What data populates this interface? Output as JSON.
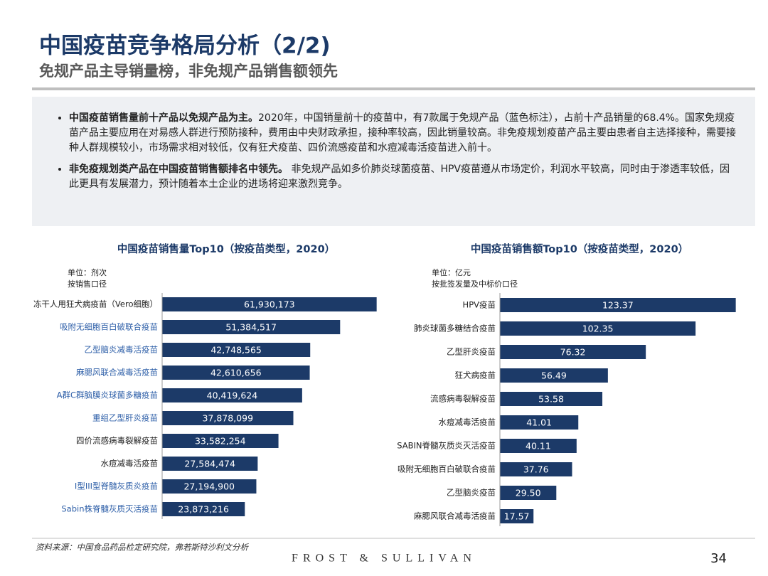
{
  "header": {
    "title": "中国疫苗竞争格局分析（2/2)",
    "subtitle": "免规产品主导销量榜，非免规产品销售额领先"
  },
  "bullets": [
    {
      "bold": "中国疫苗销售量前十产品以免规产品为主。",
      "text": "2020年，中国销量前十的疫苗中，有7款属于免规产品（蓝色标注），占前十产品销量的68.4%。国家免规疫苗产品主要应用在对易感人群进行预防接种，费用由中央财政承担，接种率较高，因此销量较高。非免疫规划疫苗产品主要由患者自主选择接种，需要接种人群规模较小，市场需求相对较低，仅有狂犬疫苗、四价流感疫苗和水痘减毒活疫苗进入前十。"
    },
    {
      "bold": "非免疫规划类产品在中国疫苗销售额排名中领先。",
      "text": " 非免规产品如多价肺炎球菌疫苗、HPV疫苗遵从市场定价，利润水平较高，同时由于渗透率较低，因此更具有发展潜力，预计随着本土企业的进场将迎来激烈竞争。"
    }
  ],
  "chart_data": [
    {
      "type": "hbar",
      "title": "中国疫苗销售量Top10（按疫苗类型，2020）",
      "unit": "单位：剂次",
      "note": "按销售口径",
      "categories": [
        "冻干人用狂犬病疫苗（Vero细胞）",
        "吸附无细胞百白破联合疫苗",
        "乙型脑炎减毒活疫苗",
        "麻腮风联合减毒活疫苗",
        "A群C群脑膜炎球菌多糖疫苗",
        "重组乙型肝炎疫苗",
        "四价流感病毒裂解疫苗",
        "水痘减毒活疫苗",
        "I型III型脊髓灰质炎疫苗",
        "Sabin株脊髓灰质灭活疫苗"
      ],
      "category_colors": [
        "#222222",
        "#2e5fa8",
        "#2e5fa8",
        "#2e5fa8",
        "#2e5fa8",
        "#2e5fa8",
        "#222222",
        "#222222",
        "#2e5fa8",
        "#2e5fa8"
      ],
      "values": [
        61930173,
        51384517,
        42748565,
        42610656,
        40419624,
        37878099,
        33582254,
        27584474,
        27194900,
        23873216
      ],
      "value_labels": [
        "61,930,173",
        "51,384,517",
        "42,748,565",
        "42,610,656",
        "40,419,624",
        "37,878,099",
        "33,582,254",
        "27,584,474",
        "27,194,900",
        "23,873,216"
      ],
      "color": "#1c3a68",
      "xlim": [
        0,
        62000000
      ]
    },
    {
      "type": "hbar",
      "title": "中国疫苗销售额Top10（按疫苗类型，2020）",
      "unit": "单位：亿元",
      "note": "按批签发量及中标价口径",
      "categories": [
        "HPV疫苗",
        "肺炎球菌多糖结合疫苗",
        "乙型肝炎疫苗",
        "狂犬病疫苗",
        "流感病毒裂解疫苗",
        "水痘减毒活疫苗",
        "SABIN脊髓灰质炎灭活疫苗",
        "吸附无细胞百白破联合疫苗",
        "乙型脑炎疫苗",
        "麻腮风联合减毒活疫苗"
      ],
      "category_colors": [
        "#222222",
        "#222222",
        "#222222",
        "#222222",
        "#222222",
        "#222222",
        "#222222",
        "#222222",
        "#222222",
        "#222222"
      ],
      "values": [
        123.37,
        102.35,
        76.32,
        56.49,
        53.58,
        41.01,
        40.11,
        37.76,
        29.5,
        17.57
      ],
      "value_labels": [
        "123.37",
        "102.35",
        "76.32",
        "56.49",
        "53.58",
        "41.01",
        "40.11",
        "37.76",
        "29.50",
        "17.57"
      ],
      "color": "#1c3a68",
      "xlim": [
        0,
        123.5
      ]
    }
  ],
  "footer": {
    "source": "资料来源：中国食品药品检定研究院，弗若斯特沙利文分析",
    "brand": "FROST & SULLIVAN",
    "page": "34"
  }
}
